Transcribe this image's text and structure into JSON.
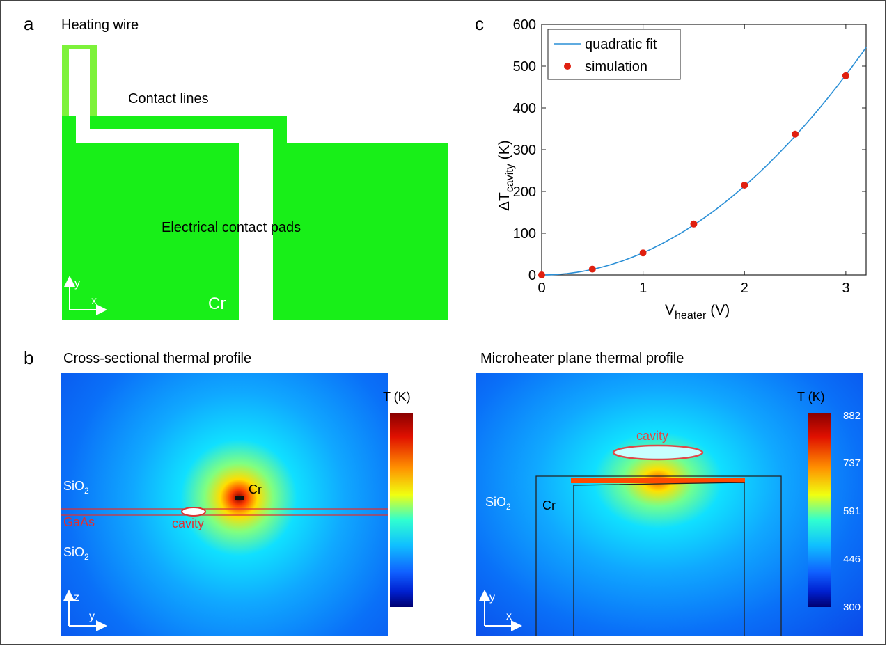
{
  "panels": {
    "a": {
      "letter": "a",
      "title": "Heating wire",
      "contact_lines": "Contact lines",
      "pads": "Electrical contact pads",
      "material": "Cr",
      "axis_y": "y",
      "axis_x": "x",
      "colors": {
        "wire": "#7df23a",
        "pads": "#18ef18"
      }
    },
    "b": {
      "letter": "b",
      "left": {
        "title": "Cross-sectional thermal profile",
        "sio2_top": "SiO",
        "sio2_bottom": "SiO",
        "sub": "2",
        "gaas": "GaAs",
        "cavity": "cavity",
        "cr": "Cr",
        "axis_v": "z",
        "axis_h": "y"
      },
      "right": {
        "title": "Microheater plane thermal profile",
        "sio2": "SiO",
        "sub": "2",
        "cr": "Cr",
        "cavity": "cavity",
        "axis_v": "y",
        "axis_h": "x"
      },
      "colorbar": {
        "title": "T (K)",
        "ticks": [
          "882",
          "737",
          "591",
          "446",
          "300"
        ]
      }
    },
    "c": {
      "letter": "c"
    }
  },
  "chart_data": {
    "type": "line",
    "xlabel": "V",
    "xlabel_sub": "heater",
    "xlabel_unit": "(V)",
    "ylabel": "ΔT",
    "ylabel_sub": "cavity",
    "ylabel_unit": "(K)",
    "xlim": [
      0,
      3.2
    ],
    "ylim": [
      0,
      600
    ],
    "x_ticks": [
      0,
      1,
      2,
      3
    ],
    "y_ticks": [
      0,
      100,
      200,
      300,
      400,
      500,
      600
    ],
    "legend_position": "top-left",
    "series": [
      {
        "name": "quadratic fit",
        "kind": "line",
        "color": "#2a8fd6",
        "coef_a": 53.2,
        "coef_b": 0
      },
      {
        "name": "simulation",
        "kind": "scatter",
        "color": "#e02010",
        "x": [
          0,
          0.5,
          1,
          1.5,
          2,
          2.5,
          3
        ],
        "y": [
          0,
          14,
          53,
          122,
          215,
          337,
          477
        ]
      }
    ]
  }
}
